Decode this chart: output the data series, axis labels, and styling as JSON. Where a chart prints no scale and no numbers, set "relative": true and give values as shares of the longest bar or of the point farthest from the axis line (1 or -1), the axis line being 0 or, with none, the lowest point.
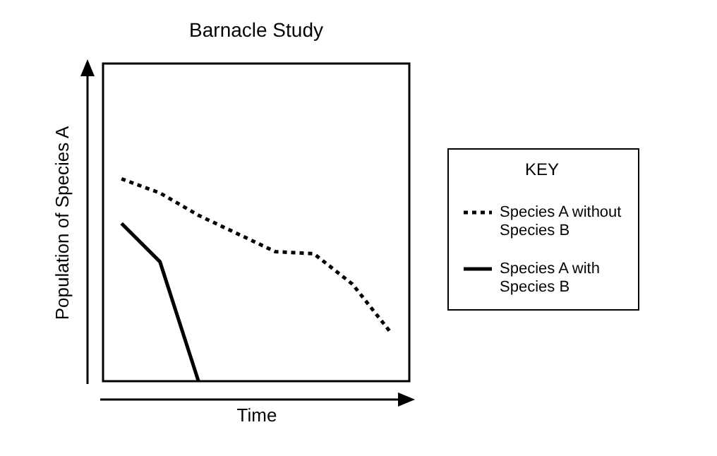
{
  "chart_data": {
    "type": "line",
    "title": "Barnacle Study",
    "xlabel": "Time",
    "ylabel": "Population of Species A",
    "legend_title": "KEY",
    "legend": "right",
    "relative": true,
    "tick_labels": false,
    "categories": [
      null,
      null,
      null,
      null,
      null,
      null,
      null,
      null
    ],
    "series": [
      {
        "name": "Species A without Species B",
        "color": "#000000",
        "line_style": "dotted",
        "values": [
          1,
          0.93,
          0.82,
          0.73,
          0.64,
          0.63,
          0.48,
          0.24
        ]
      },
      {
        "name": "Species A with Species B",
        "color": "#000000",
        "line_style": "solid",
        "values": [
          0.78,
          0.59,
          0,
          null,
          null,
          null,
          null,
          null
        ]
      }
    ]
  }
}
